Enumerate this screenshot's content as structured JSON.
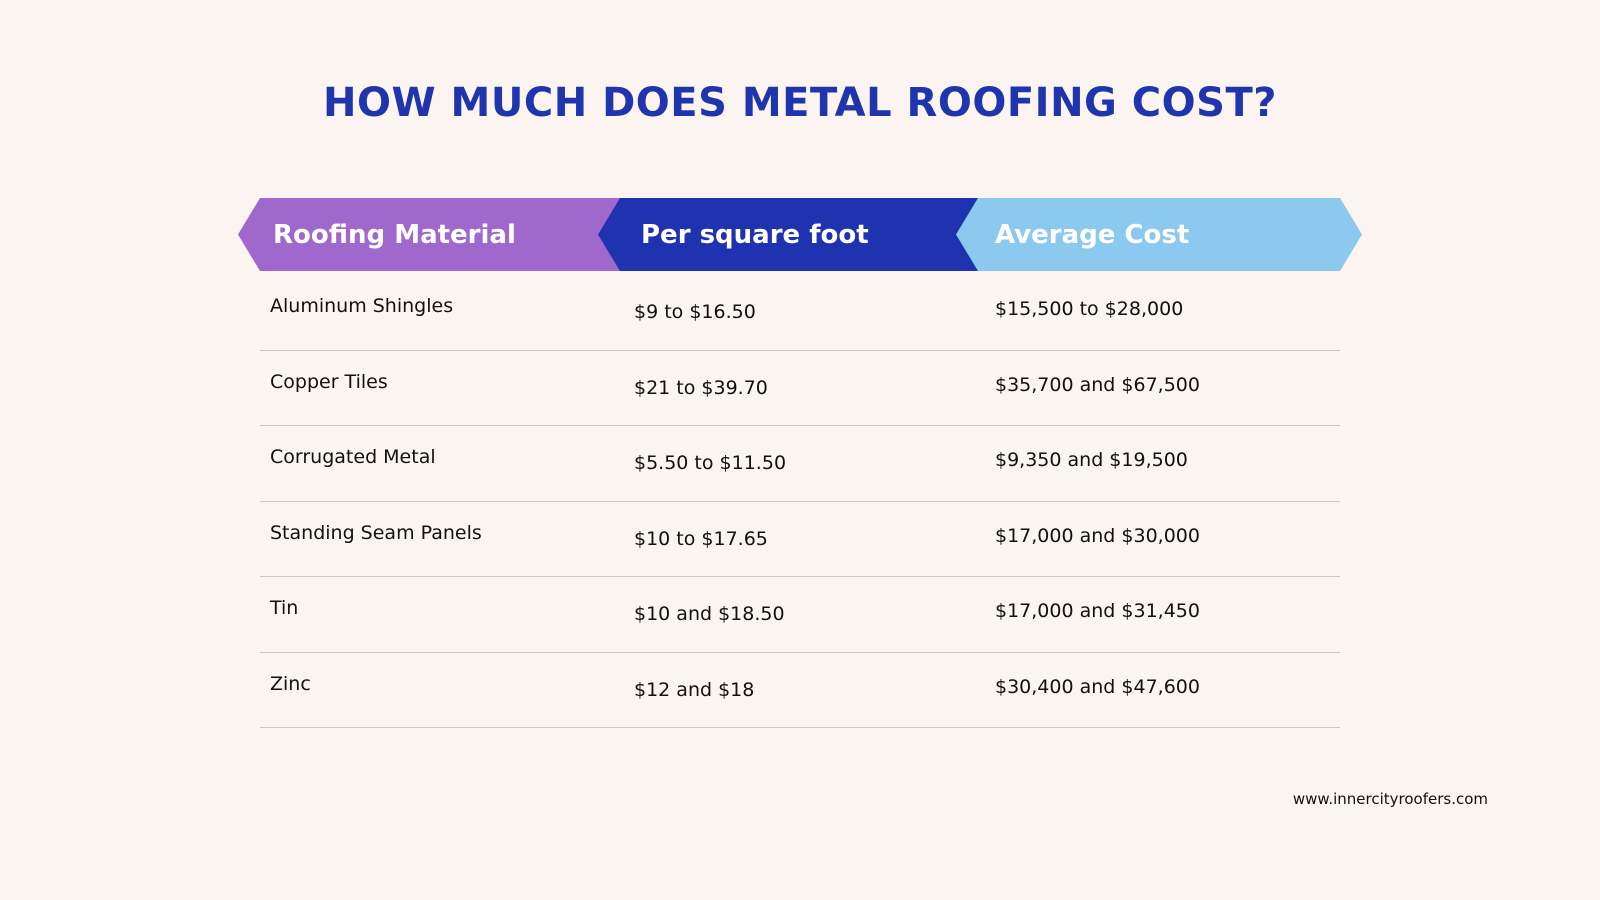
{
  "title": "HOW MUCH DOES METAL ROOFING COST?",
  "colors": {
    "background": "#fcf4f0",
    "title": "#1e35ad",
    "header_material": "#a067cc",
    "header_per_sqft": "#1f32b0",
    "header_average": "#8cc9ee"
  },
  "chart_data": {
    "type": "table",
    "columns": [
      "Roofing Material",
      "Per square foot",
      "Average Cost"
    ],
    "rows": [
      [
        "Aluminum Shingles",
        "$9 to $16.50",
        "$15,500 to $28,000"
      ],
      [
        "Copper Tiles",
        "$21 to $39.70",
        "$35,700 and $67,500"
      ],
      [
        "Corrugated Metal",
        "$5.50 to $11.50",
        "$9,350 and $19,500"
      ],
      [
        "Standing Seam Panels",
        "$10 to $17.65",
        "$17,000 and $30,000"
      ],
      [
        "Tin",
        "$10 and $18.50",
        "$17,000 and $31,450"
      ],
      [
        "Zinc",
        "$12 and $18",
        "$30,400 and $47,600"
      ]
    ]
  },
  "footer": "www.innercityroofers.com"
}
